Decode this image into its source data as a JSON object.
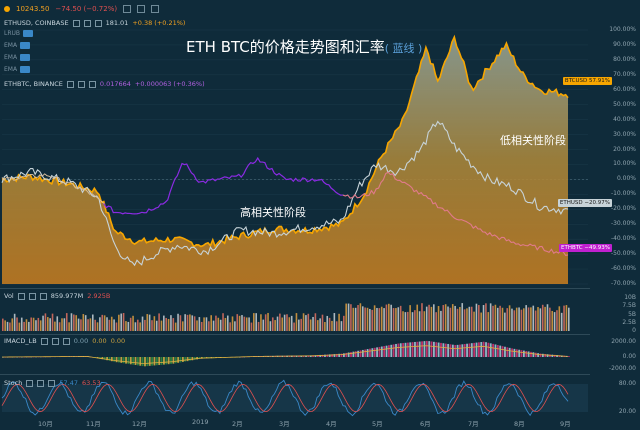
{
  "topbar": {
    "last_price": "10243.50",
    "change": "−74.50 (−0.72%)"
  },
  "legend_main": {
    "symbol": "ETHUSD, COINBASE",
    "value": "181.01",
    "change": "+0.38 (+0.21%)"
  },
  "indicators": [
    {
      "label": "LRUB"
    },
    {
      "label": "EMA"
    },
    {
      "label": "EMA"
    },
    {
      "label": "EMA"
    }
  ],
  "legend_compare": {
    "symbol": "ETHBTC, BINANCE",
    "value": "0.017664",
    "change": "+0.000063 (+0.36%)"
  },
  "title": {
    "main": "ETH BTC的价格走势图和汇率",
    "note": "( 蓝线 )"
  },
  "annotations": {
    "high_corr": "高相关性阶段",
    "low_corr": "低相关性阶段"
  },
  "right_axis": [
    "100.00%",
    "90.00%",
    "80.00%",
    "70.00%",
    "60.00%",
    "50.00%",
    "40.00%",
    "30.00%",
    "20.00%",
    "10.00%",
    "0.00%",
    "-10.00%",
    "-20.00%",
    "-30.00%",
    "-40.00%",
    "-50.00%",
    "-60.00%",
    "-70.00%"
  ],
  "tags": {
    "btcusd": {
      "label": "BTCUSD",
      "value": "57.91%",
      "color": "#f7a600"
    },
    "ethusd": {
      "label": "ETHUSD",
      "value": "−20.97%",
      "color": "#b9c4c9"
    },
    "ethbtc": {
      "label": "ETHBTC",
      "value": "−49.93%",
      "color": "#c020d0"
    }
  },
  "vol": {
    "label": "Vol",
    "value1": "859.977M",
    "value2": "2.925B",
    "axis": [
      "10B",
      "7.5B",
      "5B",
      "2.5B",
      "0"
    ]
  },
  "macd": {
    "label": "IMACD_LB",
    "v1": "0.00",
    "v2": "0.00",
    "v3": "0.00",
    "axis": [
      "2000.00",
      "0.00",
      "-2000.00"
    ]
  },
  "stoch": {
    "label": "Stoch",
    "v1": "57.47",
    "v2": "63.53",
    "axis": [
      "80.00",
      "20.00"
    ]
  },
  "xaxis": [
    "10月",
    "11月",
    "12月",
    "2019",
    "2月",
    "3月",
    "4月",
    "5月",
    "6月",
    "7月",
    "8月",
    "9月"
  ],
  "colors": {
    "btc": "#f7a600",
    "eth": "#c7d3d8",
    "ethbtc_purple": "#8a2be2",
    "ethbtc_pink": "#e07a8a",
    "bg": "#0f2b3a"
  }
}
